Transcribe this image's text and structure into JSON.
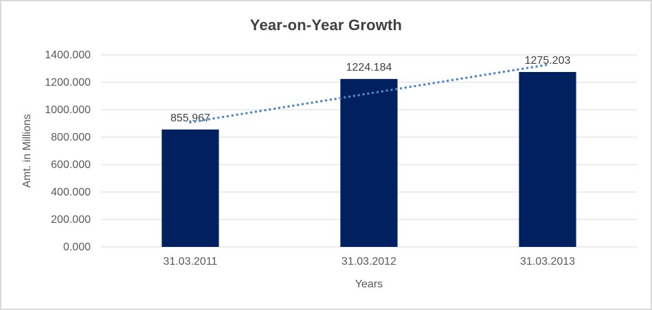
{
  "chart_data": {
    "type": "bar",
    "title": "Year-on-Year Growth",
    "xlabel": "Years",
    "ylabel": "Amt. in Millions",
    "categories": [
      "31.03.2011",
      "31.03.2012",
      "31.03.2013"
    ],
    "values": [
      855.967,
      1224.184,
      1275.203
    ],
    "value_labels": [
      "855.967",
      "1224.184",
      "1275.203"
    ],
    "ylim": [
      0,
      1400
    ],
    "ytick_step": 200,
    "yticks": [
      "1400.000",
      "1200.000",
      "1000.000",
      "800.000",
      "600.000",
      "400.000",
      "200.000",
      "0.000"
    ],
    "grid": true,
    "legend": "none",
    "trendline": {
      "fit": "linear",
      "style": "dotted"
    },
    "colors": {
      "bar": "#002060",
      "trendline": "#4E86C8",
      "gridline": "#D9D9D9",
      "title_text": "#404040",
      "axis_text": "#595959",
      "label_text": "#404040",
      "frame_border": "#D9D9D9"
    }
  }
}
